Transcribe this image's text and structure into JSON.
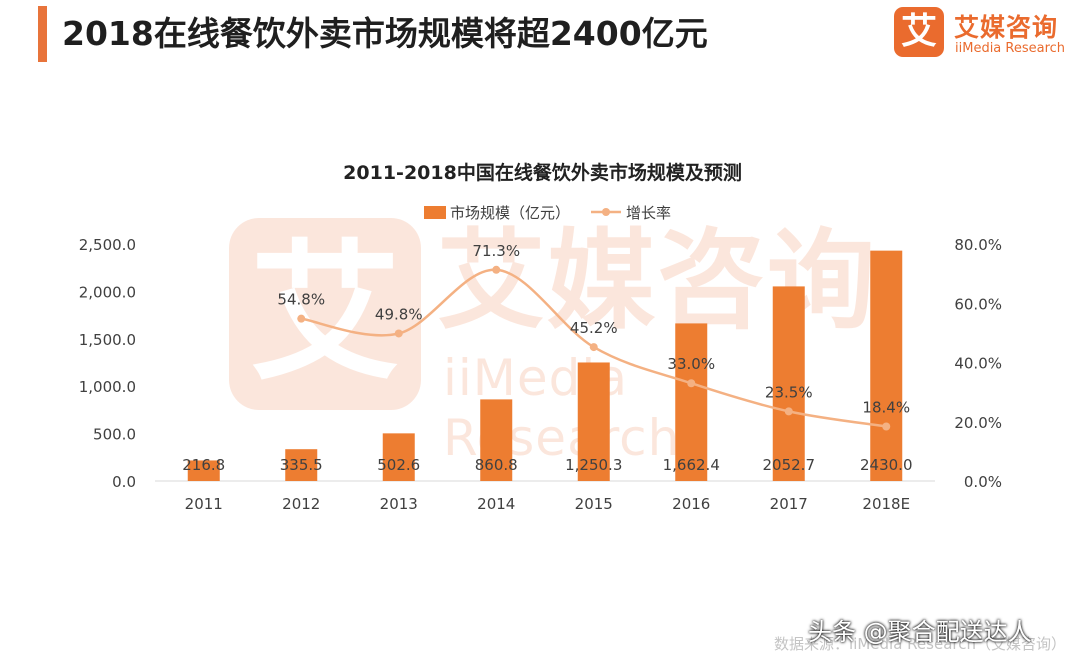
{
  "header": {
    "title": "2018在线餐饮外卖市场规模将超2400亿元",
    "accent_color": "#e8743b"
  },
  "brand": {
    "mark": "艾",
    "name_cn": "艾媒咨询",
    "name_en": "iiMedia Research",
    "color": "#ea6b2e"
  },
  "watermark": {
    "mark": "艾",
    "name_cn": "艾媒咨询",
    "name_en": "iiMedia Research"
  },
  "chart_data": {
    "type": "bar",
    "title": "2011-2018中国在线餐饮外卖市场规模及预测",
    "categories": [
      "2011",
      "2012",
      "2013",
      "2014",
      "2015",
      "2016",
      "2017",
      "2018E"
    ],
    "series": [
      {
        "name": "市场规模（亿元）",
        "type": "bar",
        "axis": "left",
        "color": "#ed7d31",
        "values": [
          216.8,
          335.5,
          502.6,
          860.8,
          1250.3,
          1662.4,
          2052.7,
          2430.0
        ],
        "labels": [
          "216.8",
          "335.5",
          "502.6",
          "860.8",
          "1,250.3",
          "1,662.4",
          "2052.7",
          "2430.0"
        ]
      },
      {
        "name": "增长率",
        "type": "line",
        "axis": "right",
        "color": "#f4b183",
        "values": [
          null,
          54.8,
          49.8,
          71.3,
          45.2,
          33.0,
          23.5,
          18.4
        ],
        "labels": [
          "",
          "54.8%",
          "49.8%",
          "71.3%",
          "45.2%",
          "33.0%",
          "23.5%",
          "18.4%"
        ]
      }
    ],
    "y_left": {
      "min": 0,
      "max": 2500,
      "ticks": [
        0,
        500,
        1000,
        1500,
        2000,
        2500
      ],
      "tick_labels": [
        "0.0",
        "500.0",
        "1,000.0",
        "1,500.0",
        "2,000.0",
        "2,500.0"
      ]
    },
    "y_right": {
      "min": 0,
      "max": 80,
      "ticks": [
        0,
        20,
        40,
        60,
        80
      ],
      "tick_labels": [
        "0.0%",
        "20.0%",
        "40.0%",
        "60.0%",
        "80.0%"
      ]
    },
    "grid": false,
    "legend_position": "top"
  },
  "footer": {
    "source": "数据来源：iiMedia Research（艾媒咨询）",
    "overlay": "头条 @聚合配送达人"
  }
}
